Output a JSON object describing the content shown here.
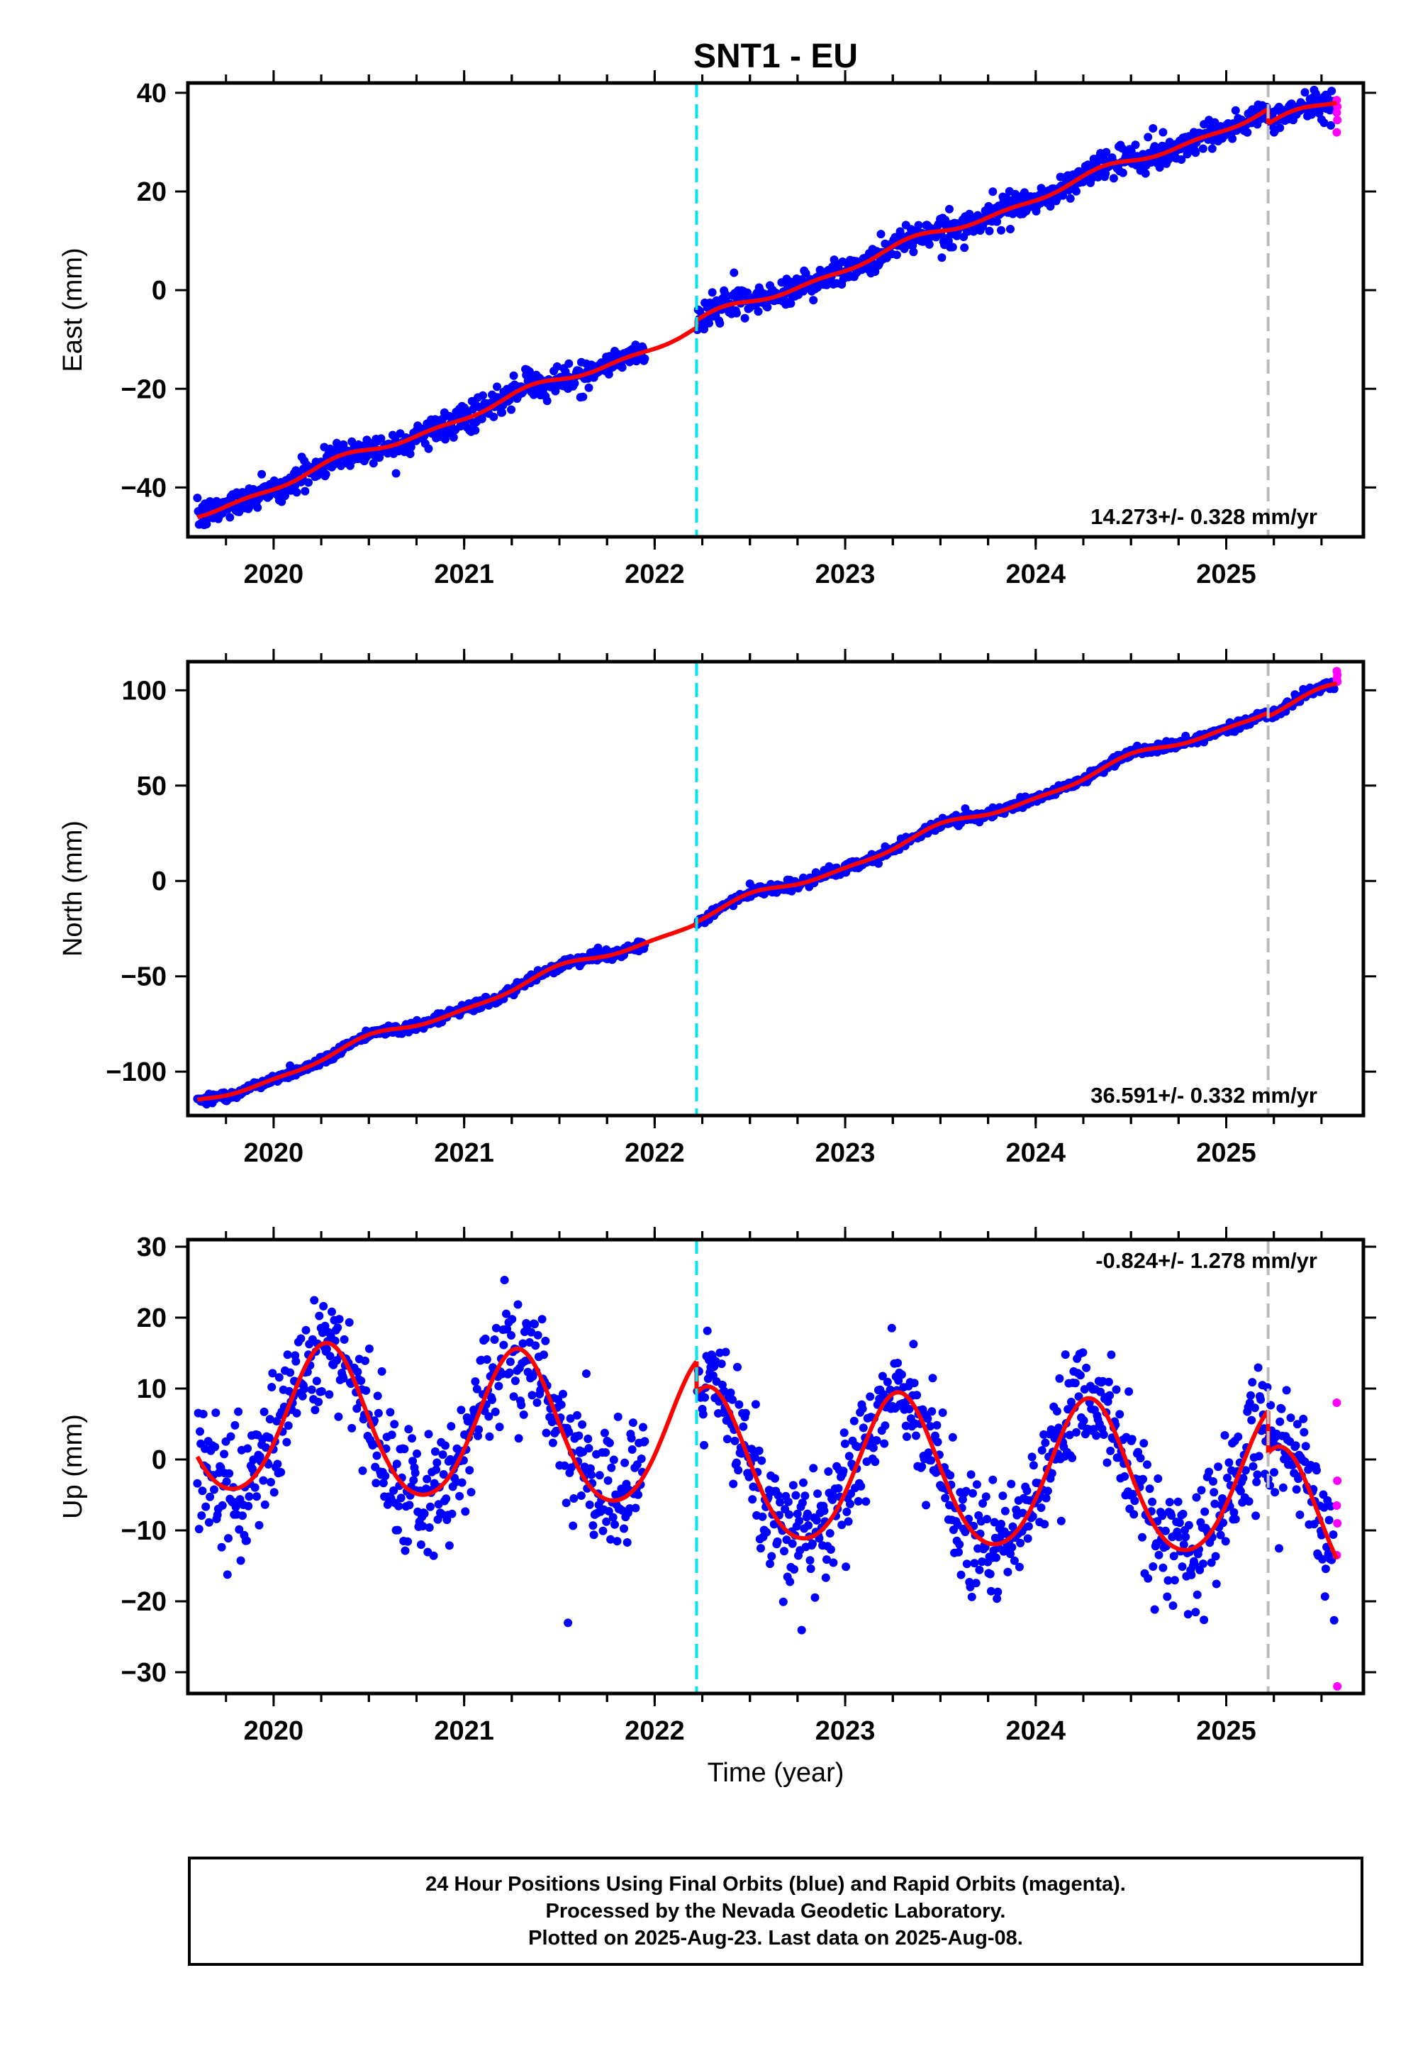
{
  "colors": {
    "final_orbit_points": "#0000ff",
    "rapid_orbit_points": "#ff00ff",
    "model_fit": "#ff0000",
    "equipment_change_line": "#00e5ee",
    "other_offset_line": "#bbbbbb",
    "frame": "#000000"
  },
  "chart_data": {
    "title": "SNT1 - EU",
    "type": "scatter",
    "xlabel": "Time (year)",
    "xlim": [
      2019.55,
      2025.72
    ],
    "xticks": [
      2020,
      2021,
      2022,
      2023,
      2024,
      2025
    ],
    "xtick_labels": [
      "2020",
      "2021",
      "2022",
      "2023",
      "2024",
      "2025"
    ],
    "offsets": [
      {
        "x": 2022.22,
        "style": "cyan dashed"
      },
      {
        "x": 2025.22,
        "style": "gray dashed"
      }
    ],
    "data_start": 2019.6,
    "last_final_data": 2025.57,
    "rapid_data_start": 2025.58,
    "panels": [
      {
        "id": "east",
        "ylabel": "East (mm)",
        "ylim": [
          -50,
          42
        ],
        "yticks": [
          -40,
          -20,
          0,
          20,
          40
        ],
        "ytick_labels": [
          "−40",
          "−20",
          "0",
          "20",
          "40"
        ],
        "velocity_label": "14.273+/- 0.328 mm/yr",
        "velocity_position": "bottom-right",
        "model": {
          "intercept_at_2019_6": -45.5,
          "rate": 14.273,
          "annual_amplitude": 0.8,
          "annual_phase_year": 2020.35,
          "semiannual_amplitude": 0.5,
          "offset_at_equipment_change": 1.5,
          "offset_at_2025_22": -3.0
        },
        "scatter_sd": 1.4,
        "rapid_values": [
          38.5,
          37.2,
          36.0,
          34.5,
          32.0
        ]
      },
      {
        "id": "north",
        "ylabel": "North (mm)",
        "ylim": [
          -123,
          115
        ],
        "yticks": [
          -100,
          -50,
          0,
          50,
          100
        ],
        "ytick_labels": [
          "−100",
          "−50",
          "0",
          "50",
          "100"
        ],
        "velocity_label": "36.591+/- 0.332 mm/yr",
        "velocity_position": "bottom-right",
        "model": {
          "intercept_at_2019_6": -117.0,
          "rate": 36.591,
          "annual_amplitude": 2.5,
          "annual_phase_year": 2020.5,
          "semiannual_amplitude": 1.0,
          "offset_at_equipment_change": 1.0,
          "offset_at_2025_22": -2.0
        },
        "scatter_sd": 1.3,
        "rapid_values": [
          110.0,
          108.0,
          106.0,
          104.5
        ]
      },
      {
        "id": "up",
        "ylabel": "Up (mm)",
        "ylim": [
          -33,
          31
        ],
        "yticks": [
          -30,
          -20,
          -10,
          0,
          10,
          20,
          30
        ],
        "ytick_labels": [
          "−30",
          "−20",
          "−10",
          "0",
          "10",
          "20",
          "30"
        ],
        "velocity_label": "-0.824+/- 1.278 mm/yr",
        "velocity_position": "top-right",
        "model": {
          "intercept_at_2019_6": 5.5,
          "rate": -0.824,
          "annual_amplitude": 10.5,
          "annual_phase_year": 2020.28,
          "semiannual_amplitude": 1.0,
          "offset_at_equipment_change": -4.5,
          "offset_at_2025_22": -6.0
        },
        "scatter_sd": 4.2,
        "rapid_values": [
          8.0,
          -3.0,
          -6.5,
          -9.0,
          -13.5,
          -32.0
        ]
      }
    ]
  },
  "footer": {
    "line1": "24 Hour Positions Using Final Orbits (blue) and Rapid Orbits (magenta).",
    "line2": "Processed by the Nevada Geodetic Laboratory.",
    "line3": "Plotted on 2025-Aug-23. Last data on 2025-Aug-08."
  }
}
